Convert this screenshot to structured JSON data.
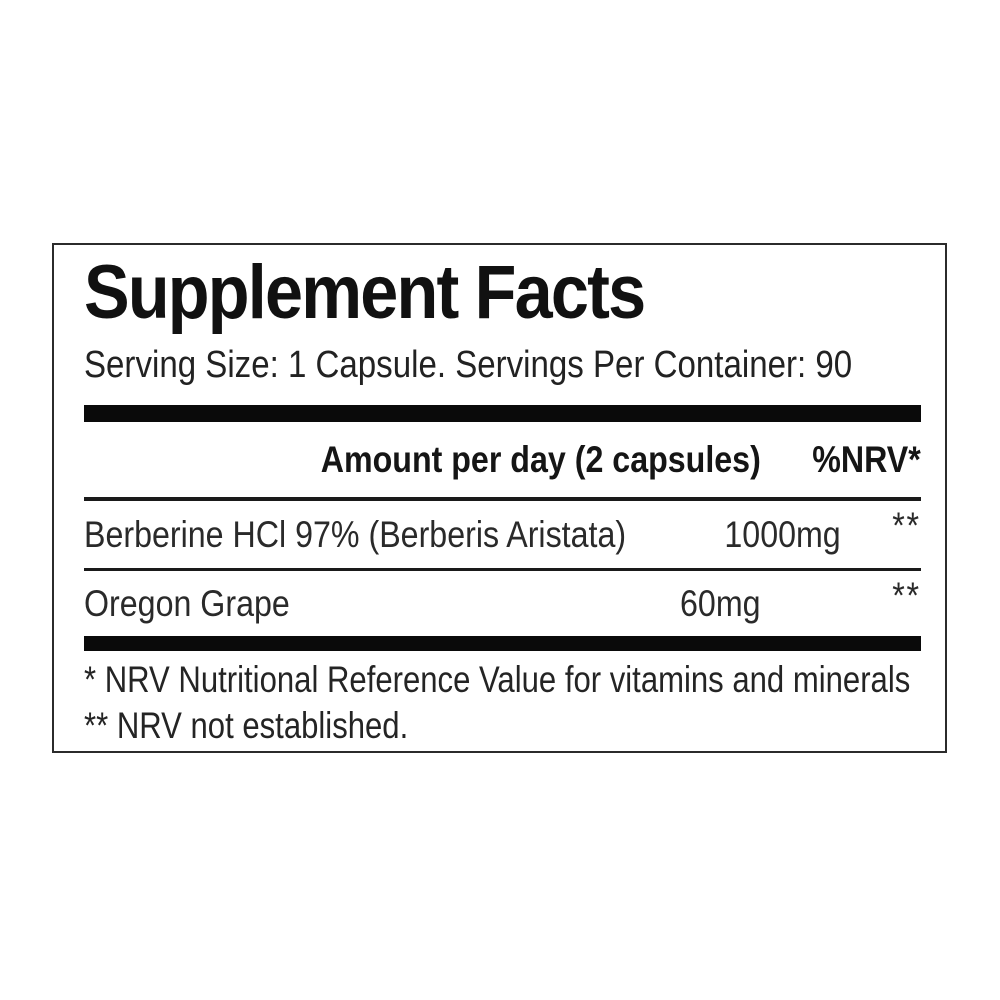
{
  "label": {
    "title": "Supplement Facts",
    "serving_line": "Serving Size: 1 Capsule. Servings Per Container: 90",
    "columns": {
      "amount_header": "Amount per day (2 capsules)",
      "nrv_header": "%NRV*"
    },
    "rows": [
      {
        "name": "Berberine HCl 97% (Berberis Aristata)",
        "amount": "1000mg",
        "nrv": "**"
      },
      {
        "name": "Oregon Grape",
        "amount": "60mg",
        "nrv": "**"
      }
    ],
    "footnotes": [
      "* NRV Nutritional Reference Value for vitamins and minerals",
      "** NRV not established."
    ],
    "colors": {
      "background": "#ffffff",
      "text": "#1c1c1c",
      "bar": "#0a0a0a",
      "border": "#2b2b2b"
    }
  }
}
